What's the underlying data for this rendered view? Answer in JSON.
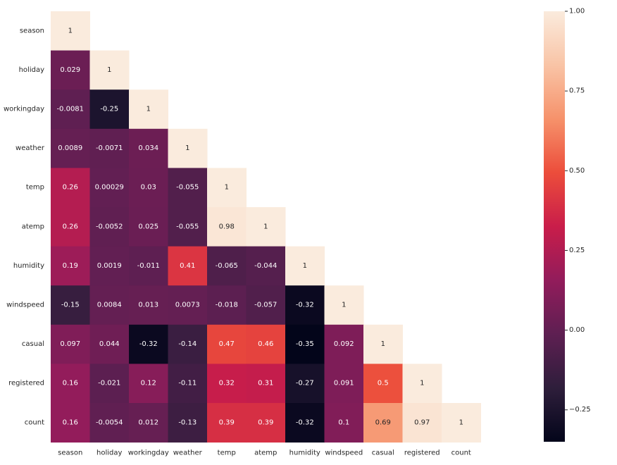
{
  "chart_data": {
    "type": "heatmap",
    "title": "",
    "variables": [
      "season",
      "holiday",
      "workingday",
      "weather",
      "temp",
      "atemp",
      "humidity",
      "windspeed",
      "casual",
      "registered",
      "count"
    ],
    "mask": "upper-triangle",
    "values": [
      [
        1
      ],
      [
        0.029,
        1
      ],
      [
        -0.0081,
        -0.25,
        1
      ],
      [
        0.0089,
        -0.0071,
        0.034,
        1
      ],
      [
        0.26,
        0.00029,
        0.03,
        -0.055,
        1
      ],
      [
        0.26,
        -0.0052,
        0.025,
        -0.055,
        0.98,
        1
      ],
      [
        0.19,
        0.0019,
        -0.011,
        0.41,
        -0.065,
        -0.044,
        1
      ],
      [
        -0.15,
        0.0084,
        0.013,
        0.0073,
        -0.018,
        -0.057,
        -0.32,
        1
      ],
      [
        0.097,
        0.044,
        -0.32,
        -0.14,
        0.47,
        0.46,
        -0.35,
        0.092,
        1
      ],
      [
        0.16,
        -0.021,
        0.12,
        -0.11,
        0.32,
        0.31,
        -0.27,
        0.091,
        0.5,
        1
      ],
      [
        0.16,
        -0.0054,
        0.012,
        -0.13,
        0.39,
        0.39,
        -0.32,
        0.1,
        0.69,
        0.97,
        1
      ]
    ],
    "value_labels": [
      [
        "1"
      ],
      [
        "0.029",
        "1"
      ],
      [
        "-0.0081",
        "-0.25",
        "1"
      ],
      [
        "0.0089",
        "-0.0071",
        "0.034",
        "1"
      ],
      [
        "0.26",
        "0.00029",
        "0.03",
        "-0.055",
        "1"
      ],
      [
        "0.26",
        "-0.0052",
        "0.025",
        "-0.055",
        "0.98",
        "1"
      ],
      [
        "0.19",
        "0.0019",
        "-0.011",
        "0.41",
        "-0.065",
        "-0.044",
        "1"
      ],
      [
        "-0.15",
        "0.0084",
        "0.013",
        "0.0073",
        "-0.018",
        "-0.057",
        "-0.32",
        "1"
      ],
      [
        "0.097",
        "0.044",
        "-0.32",
        "-0.14",
        "0.47",
        "0.46",
        "-0.35",
        "0.092",
        "1"
      ],
      [
        "0.16",
        "-0.021",
        "0.12",
        "-0.11",
        "0.32",
        "0.31",
        "-0.27",
        "0.091",
        "0.5",
        "1"
      ],
      [
        "0.16",
        "-0.0054",
        "0.012",
        "-0.13",
        "0.39",
        "0.39",
        "-0.32",
        "0.1",
        "0.69",
        "0.97",
        "1"
      ]
    ],
    "colorbar": {
      "min": -0.35,
      "max": 1.0,
      "ticks": [
        1.0,
        0.75,
        0.5,
        0.25,
        0.0,
        -0.25
      ],
      "tick_labels": [
        "1.00",
        "0.75",
        "0.50",
        "0.25",
        "0.00",
        "−0.25"
      ],
      "colormap": "rocket",
      "colors": [
        "#03051a",
        "#2e1e3b",
        "#5e1f52",
        "#921c5b",
        "#c91d4a",
        "#ec4d3b",
        "#f6926b",
        "#f9c4a6",
        "#faebdd"
      ]
    }
  }
}
